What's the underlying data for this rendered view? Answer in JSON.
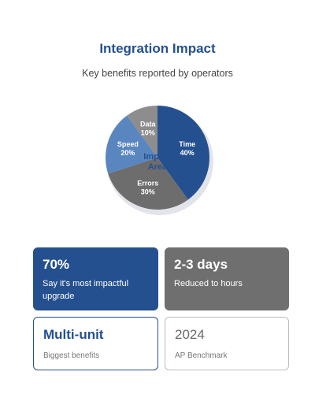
{
  "header": {
    "title": "Integration Impact",
    "subtitle": "Key benefits reported by operators"
  },
  "chart_data": {
    "type": "pie",
    "center_label": [
      "Impact",
      "Area"
    ],
    "slices": [
      {
        "label": "Time",
        "value": 40,
        "display": "40%",
        "color": "#24508f"
      },
      {
        "label": "Errors",
        "value": 30,
        "display": "30%",
        "color": "#6d6d6d"
      },
      {
        "label": "Speed",
        "value": 20,
        "display": "20%",
        "color": "#5a86c0"
      },
      {
        "label": "Data",
        "value": 10,
        "display": "10%",
        "color": "#8d8d8d"
      }
    ]
  },
  "cards": [
    {
      "value": "70%",
      "caption": "Say it's most impactful upgrade"
    },
    {
      "value": "2-3 days",
      "caption": "Reduced to hours"
    },
    {
      "value": "Multi-unit",
      "caption": "Biggest benefits"
    },
    {
      "value": "2024",
      "caption": "AP Benchmark"
    }
  ],
  "colors": {
    "brand_blue": "#24508f",
    "accent_gray": "#6f6f6f",
    "light_blue": "#5a86c0"
  }
}
